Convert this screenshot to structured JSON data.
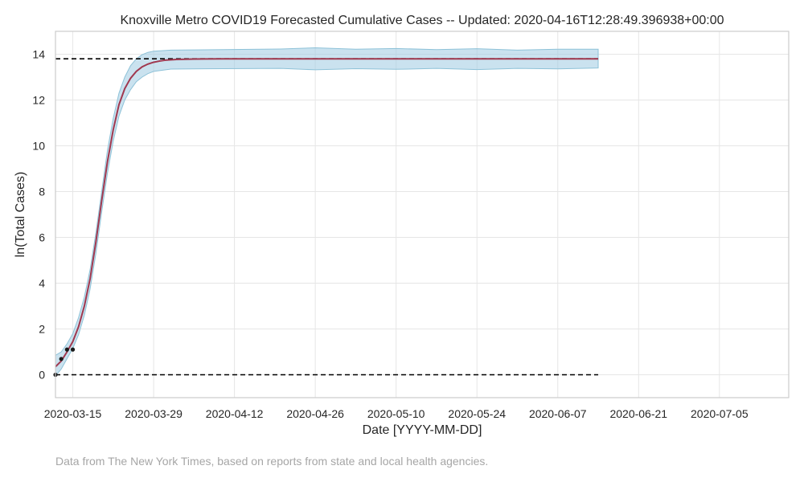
{
  "chart_data": {
    "type": "line",
    "title": "Knoxville Metro COVID19 Forecasted Cumulative Cases -- Updated: 2020-04-16T12:28:49.396938+00:00",
    "xlabel": "Date [YYYY-MM-DD]",
    "ylabel": "ln(Total Cases)",
    "footnote": "Data from The New York Times, based on reports from state and local health agencies.",
    "x_ticks": [
      "2020-03-15",
      "2020-03-29",
      "2020-04-12",
      "2020-04-26",
      "2020-05-10",
      "2020-05-24",
      "2020-06-07",
      "2020-06-21",
      "2020-07-05"
    ],
    "y_ticks": [
      "0",
      "2",
      "4",
      "6",
      "8",
      "10",
      "12",
      "14"
    ],
    "xlim": [
      "2020-03-12",
      "2020-07-17"
    ],
    "ylim": [
      -1,
      15
    ],
    "grid": true,
    "colors": {
      "forecast_line": "#a0384f",
      "band_fill": "#9ecae1",
      "band_edge": "#8ec2d8",
      "reference_lines": "#000000",
      "observed_points": "#1a1a1a",
      "grid": "#e6e6e6",
      "axes_frame": "#cccccc"
    },
    "reference_lines": [
      {
        "y": 13.8,
        "x_start": "2020-03-12",
        "x_end": "2020-06-14",
        "style": "dashed"
      },
      {
        "y": 0,
        "x_start": "2020-03-12",
        "x_end": "2020-06-14",
        "style": "dashed"
      }
    ],
    "series": [
      {
        "type": "line",
        "points": [
          [
            "2020-03-12",
            0.35
          ],
          [
            "2020-03-13",
            0.6
          ],
          [
            "2020-03-14",
            1.0
          ],
          [
            "2020-03-15",
            1.45
          ],
          [
            "2020-03-16",
            2.1
          ],
          [
            "2020-03-17",
            3.0
          ],
          [
            "2020-03-18",
            4.2
          ],
          [
            "2020-03-19",
            5.8
          ],
          [
            "2020-03-20",
            7.6
          ],
          [
            "2020-03-21",
            9.3
          ],
          [
            "2020-03-22",
            10.7
          ],
          [
            "2020-03-23",
            11.8
          ],
          [
            "2020-03-24",
            12.5
          ],
          [
            "2020-03-25",
            12.95
          ],
          [
            "2020-03-26",
            13.25
          ],
          [
            "2020-03-27",
            13.45
          ],
          [
            "2020-03-28",
            13.57
          ],
          [
            "2020-03-29",
            13.65
          ],
          [
            "2020-03-30",
            13.7
          ],
          [
            "2020-03-31",
            13.74
          ],
          [
            "2020-04-02",
            13.77
          ],
          [
            "2020-04-05",
            13.79
          ],
          [
            "2020-04-10",
            13.8
          ],
          [
            "2020-06-14",
            13.8
          ]
        ]
      },
      {
        "type": "band",
        "upper": [
          [
            "2020-03-12",
            0.85
          ],
          [
            "2020-03-13",
            1.0
          ],
          [
            "2020-03-14",
            1.35
          ],
          [
            "2020-03-15",
            1.8
          ],
          [
            "2020-03-16",
            2.5
          ],
          [
            "2020-03-17",
            3.4
          ],
          [
            "2020-03-18",
            4.6
          ],
          [
            "2020-03-19",
            6.2
          ],
          [
            "2020-03-20",
            8.0
          ],
          [
            "2020-03-21",
            9.8
          ],
          [
            "2020-03-22",
            11.2
          ],
          [
            "2020-03-23",
            12.3
          ],
          [
            "2020-03-24",
            13.0
          ],
          [
            "2020-03-25",
            13.5
          ],
          [
            "2020-03-26",
            13.8
          ],
          [
            "2020-03-27",
            13.98
          ],
          [
            "2020-03-28",
            14.08
          ],
          [
            "2020-03-29",
            14.13
          ],
          [
            "2020-04-01",
            14.18
          ],
          [
            "2020-04-10",
            14.2
          ],
          [
            "2020-04-20",
            14.23
          ],
          [
            "2020-04-26",
            14.28
          ],
          [
            "2020-05-03",
            14.22
          ],
          [
            "2020-05-10",
            14.25
          ],
          [
            "2020-05-17",
            14.2
          ],
          [
            "2020-05-24",
            14.24
          ],
          [
            "2020-05-31",
            14.18
          ],
          [
            "2020-06-07",
            14.22
          ],
          [
            "2020-06-14",
            14.22
          ]
        ],
        "lower": [
          [
            "2020-03-12",
            -0.05
          ],
          [
            "2020-03-13",
            0.25
          ],
          [
            "2020-03-14",
            0.7
          ],
          [
            "2020-03-15",
            1.15
          ],
          [
            "2020-03-16",
            1.75
          ],
          [
            "2020-03-17",
            2.6
          ],
          [
            "2020-03-18",
            3.75
          ],
          [
            "2020-03-19",
            5.3
          ],
          [
            "2020-03-20",
            7.1
          ],
          [
            "2020-03-21",
            8.8
          ],
          [
            "2020-03-22",
            10.2
          ],
          [
            "2020-03-23",
            11.3
          ],
          [
            "2020-03-24",
            12.0
          ],
          [
            "2020-03-25",
            12.45
          ],
          [
            "2020-03-26",
            12.8
          ],
          [
            "2020-03-27",
            13.0
          ],
          [
            "2020-03-28",
            13.15
          ],
          [
            "2020-03-29",
            13.25
          ],
          [
            "2020-04-01",
            13.35
          ],
          [
            "2020-04-10",
            13.37
          ],
          [
            "2020-04-20",
            13.38
          ],
          [
            "2020-04-26",
            13.32
          ],
          [
            "2020-05-03",
            13.37
          ],
          [
            "2020-05-10",
            13.34
          ],
          [
            "2020-05-17",
            13.38
          ],
          [
            "2020-05-24",
            13.33
          ],
          [
            "2020-05-31",
            13.38
          ],
          [
            "2020-06-07",
            13.36
          ],
          [
            "2020-06-14",
            13.4
          ]
        ]
      },
      {
        "type": "scatter",
        "points": [
          [
            "2020-03-12",
            0
          ],
          [
            "2020-03-13",
            0.69
          ],
          [
            "2020-03-14",
            1.1
          ],
          [
            "2020-03-15",
            1.1
          ]
        ]
      }
    ]
  }
}
